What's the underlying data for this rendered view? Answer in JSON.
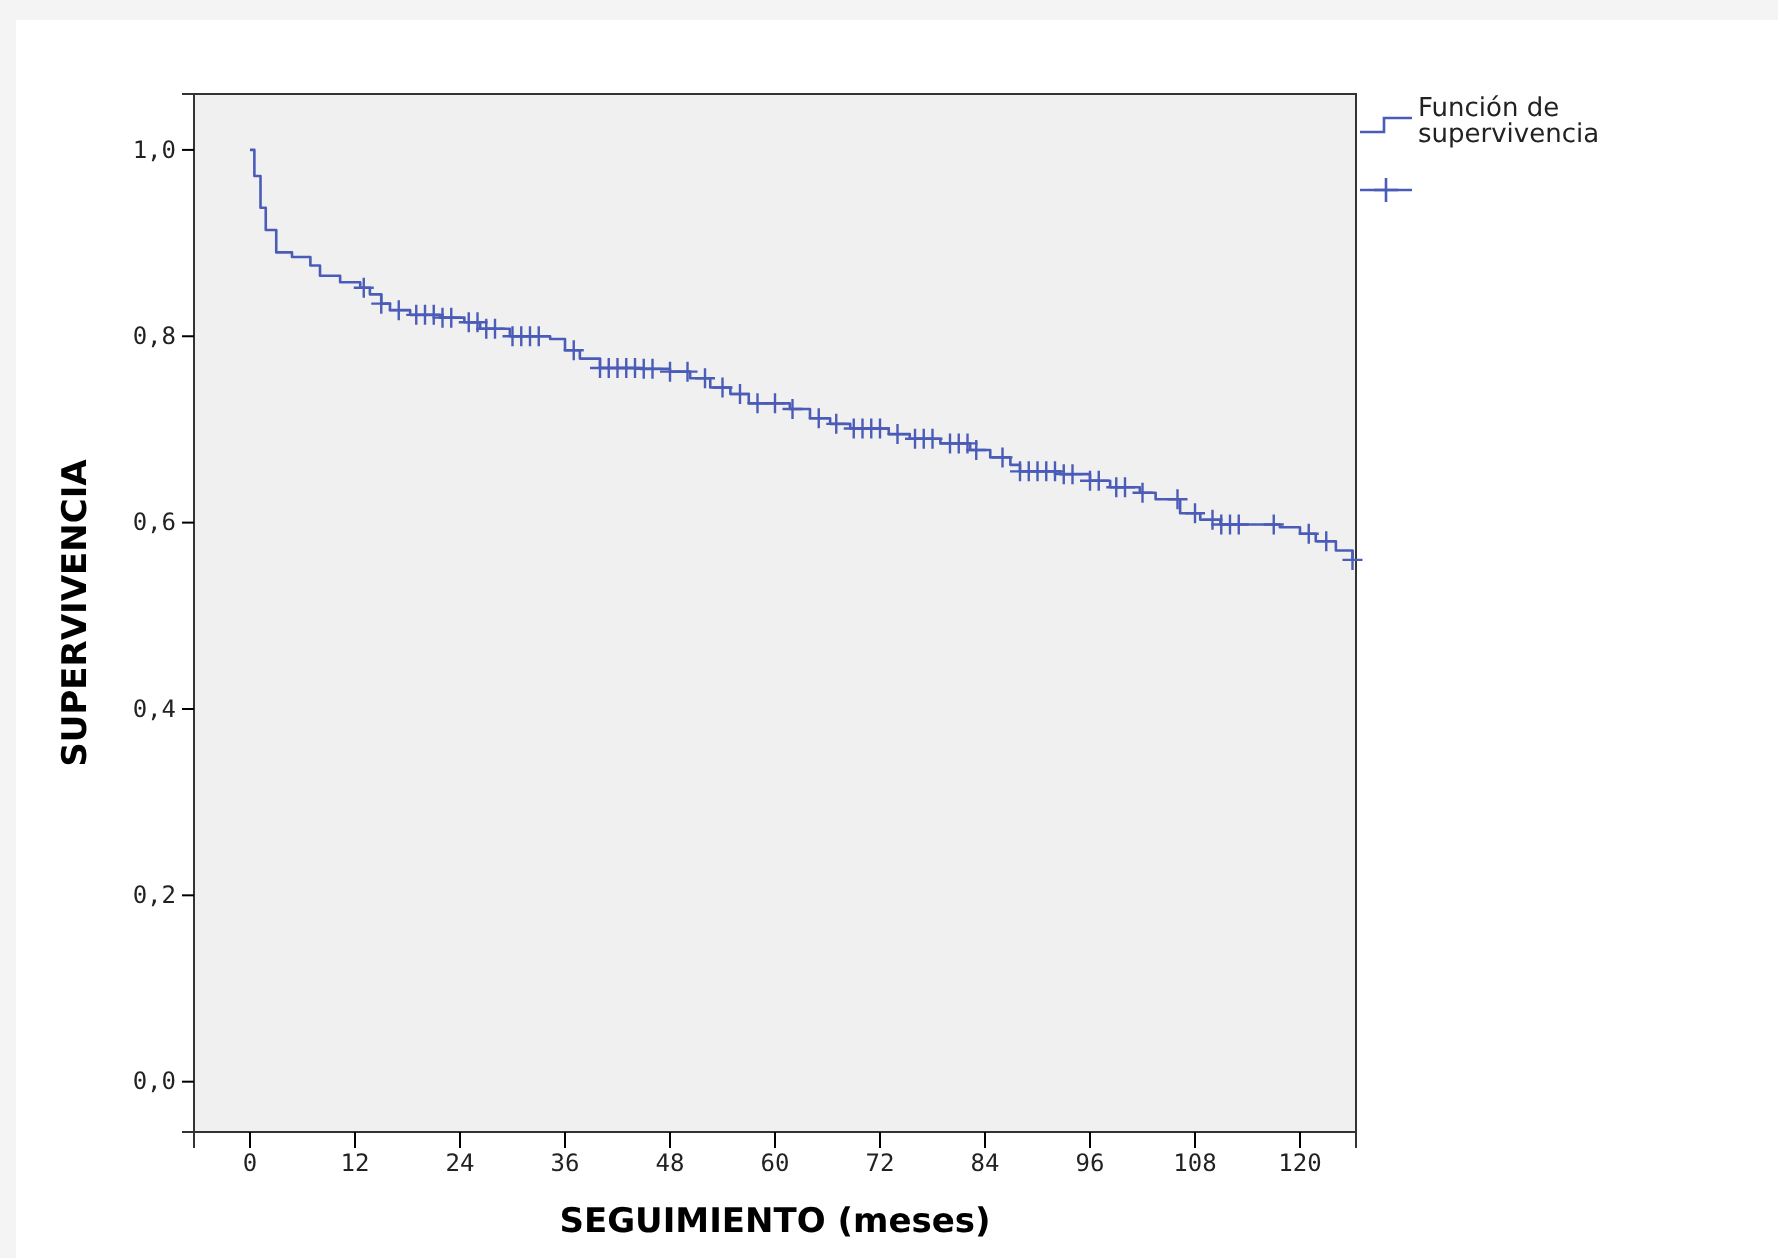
{
  "chart_data": {
    "type": "step",
    "xlabel": "SEGUIMIENTO (meses)",
    "ylabel": "SUPERVIVENCIA",
    "xlim": [
      -6.4,
      126.4
    ],
    "xticks": [
      0,
      12,
      24,
      36,
      48,
      60,
      72,
      84,
      96,
      108,
      120
    ],
    "ylim": [
      -0.054,
      1.06
    ],
    "yticks": [
      {
        "value": 0,
        "label": "0,0"
      },
      {
        "value": 0.2,
        "label": "0,2"
      },
      {
        "value": 0.4,
        "label": "0,4"
      },
      {
        "value": 0.6,
        "label": "0,6"
      },
      {
        "value": 0.8,
        "label": "0,8"
      },
      {
        "value": 1,
        "label": "1,0"
      }
    ],
    "grid": false,
    "legend": "top right",
    "series": [
      {
        "name": "Función de supervivencia",
        "type": "step",
        "color": "#4a5cb8",
        "x": [
          0,
          0.5,
          1.2,
          1.8,
          3,
          4.8,
          6.9,
          8,
          10.3,
          12.6,
          13.7,
          15,
          16,
          18.3,
          21.7,
          24.5,
          26.3,
          29.7,
          34.3,
          36,
          37.7,
          40,
          44.6,
          48,
          50.3,
          52.6,
          54.9,
          57,
          61.7,
          64,
          66.3,
          68.6,
          73,
          75.4,
          78.9,
          82.3,
          84.6,
          86.9,
          88,
          92.6,
          96,
          98.3,
          101.7,
          103.5,
          106.3,
          108.6,
          110.9,
          117.7,
          120,
          121.8,
          124.1,
          126
        ],
        "values": [
          1.0,
          0.972,
          0.938,
          0.914,
          0.89,
          0.885,
          0.876,
          0.865,
          0.858,
          0.852,
          0.845,
          0.835,
          0.828,
          0.823,
          0.82,
          0.815,
          0.808,
          0.8,
          0.797,
          0.785,
          0.776,
          0.766,
          0.765,
          0.762,
          0.755,
          0.745,
          0.738,
          0.728,
          0.722,
          0.712,
          0.706,
          0.701,
          0.695,
          0.69,
          0.685,
          0.678,
          0.67,
          0.662,
          0.655,
          0.652,
          0.645,
          0.638,
          0.632,
          0.625,
          0.61,
          0.603,
          0.598,
          0.595,
          0.588,
          0.58,
          0.57,
          0.56
        ]
      },
      {
        "type": "scatter",
        "marker": "cross",
        "color": "#4a5cb8",
        "x": [
          13,
          15,
          17,
          19,
          20,
          21,
          22,
          23,
          25,
          26,
          27,
          28,
          30,
          31,
          32,
          33,
          37,
          40,
          41,
          42,
          43,
          44,
          45,
          46,
          48,
          50,
          52,
          54,
          56,
          58,
          60,
          62,
          65,
          67,
          69,
          70,
          71,
          72,
          74,
          76,
          77,
          78,
          80,
          81,
          82,
          83,
          86,
          88,
          89,
          90,
          91,
          92,
          93,
          94,
          96,
          97,
          99,
          100,
          102,
          106,
          108,
          110,
          111,
          112,
          113,
          117,
          121,
          123,
          126
        ],
        "values": [
          0.852,
          0.835,
          0.828,
          0.823,
          0.823,
          0.823,
          0.82,
          0.82,
          0.815,
          0.815,
          0.808,
          0.808,
          0.8,
          0.8,
          0.8,
          0.8,
          0.785,
          0.766,
          0.766,
          0.766,
          0.766,
          0.766,
          0.765,
          0.765,
          0.762,
          0.762,
          0.755,
          0.745,
          0.738,
          0.728,
          0.728,
          0.722,
          0.712,
          0.706,
          0.701,
          0.701,
          0.701,
          0.701,
          0.695,
          0.69,
          0.69,
          0.69,
          0.685,
          0.685,
          0.685,
          0.678,
          0.67,
          0.655,
          0.655,
          0.655,
          0.655,
          0.655,
          0.652,
          0.652,
          0.645,
          0.645,
          0.638,
          0.638,
          0.632,
          0.625,
          0.61,
          0.603,
          0.598,
          0.598,
          0.598,
          0.598,
          0.588,
          0.58,
          0.56
        ]
      }
    ]
  }
}
